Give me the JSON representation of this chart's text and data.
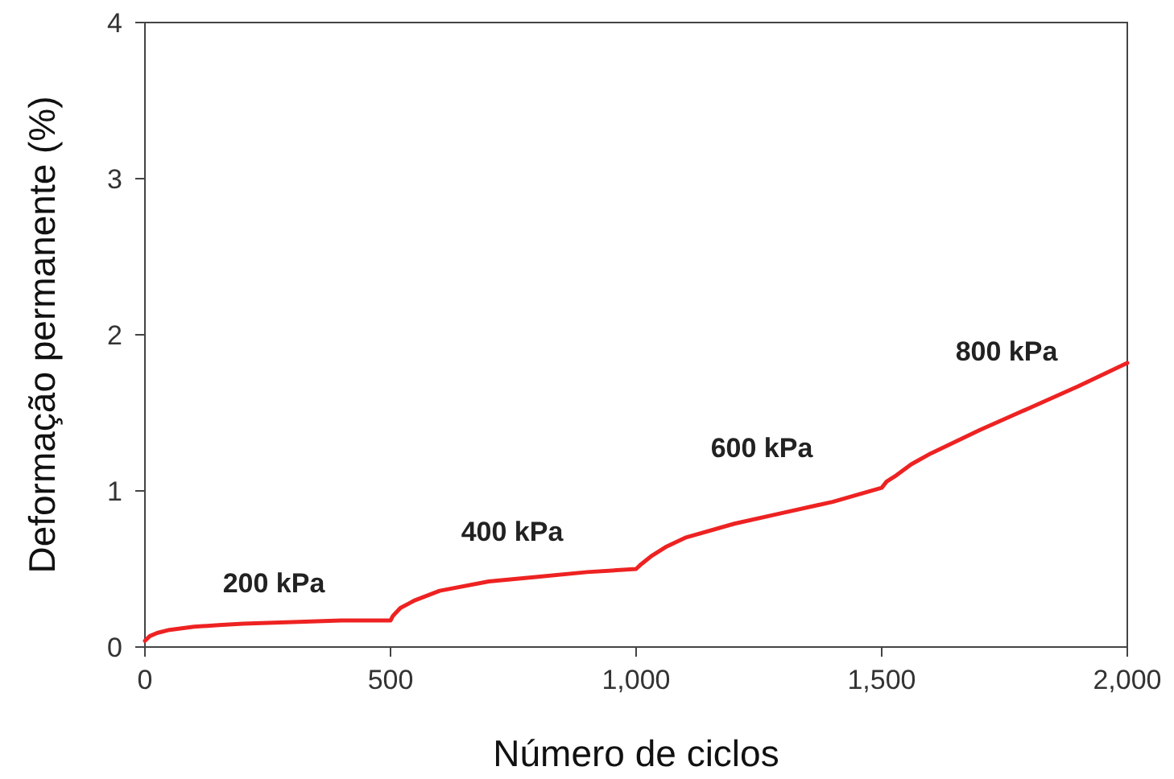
{
  "chart_data": {
    "type": "line",
    "xlabel": "Número de ciclos",
    "ylabel": "Deformação permanente (%)",
    "xlim": [
      0,
      2000
    ],
    "xticks": [
      0,
      500,
      {
        "value": 1000,
        "label": "1,000"
      },
      {
        "value": 1500,
        "label": "1,500"
      },
      {
        "value": 2000,
        "label": "2,000"
      }
    ],
    "ylim": [
      0,
      4
    ],
    "yticks": [
      0,
      1,
      2,
      3,
      4
    ],
    "grid": false,
    "marker": "none",
    "line_style": "solid",
    "series": [
      {
        "color": "#ee2222",
        "x": [
          0,
          10,
          25,
          50,
          100,
          150,
          200,
          300,
          400,
          500,
          505,
          520,
          550,
          600,
          700,
          800,
          900,
          1000,
          1010,
          1030,
          1060,
          1100,
          1200,
          1300,
          1400,
          1500,
          1510,
          1530,
          1560,
          1600,
          1700,
          1800,
          1900,
          2000
        ],
        "values": [
          0.04,
          0.07,
          0.09,
          0.11,
          0.13,
          0.14,
          0.15,
          0.16,
          0.17,
          0.17,
          0.2,
          0.25,
          0.3,
          0.36,
          0.42,
          0.45,
          0.48,
          0.5,
          0.53,
          0.58,
          0.64,
          0.7,
          0.79,
          0.86,
          0.93,
          1.02,
          1.06,
          1.1,
          1.17,
          1.24,
          1.39,
          1.53,
          1.67,
          1.82
        ]
      }
    ],
    "annotations": [
      "200 kPa",
      "400 kPa",
      "600 kPa",
      "800 kPa"
    ]
  }
}
